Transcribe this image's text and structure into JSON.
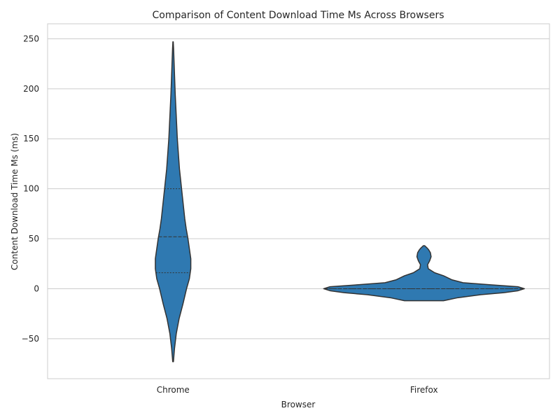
{
  "chart_data": {
    "type": "violin",
    "title": "Comparison of Content Download Time Ms Across Browsers",
    "xlabel": "Browser",
    "ylabel": "Content Download Time Ms (ms)",
    "categories": [
      "Chrome",
      "Firefox"
    ],
    "ylim": [
      -90,
      265
    ],
    "yticks": [
      -50,
      0,
      50,
      100,
      150,
      200,
      250
    ],
    "ytick_labels": [
      "−50",
      "0",
      "50",
      "100",
      "150",
      "200",
      "250"
    ],
    "grid": true,
    "fill_color": "#2f79b1",
    "violins": [
      {
        "category": "Chrome",
        "range": [
          -73,
          247
        ],
        "quartiles": {
          "q1": 16,
          "median": 52,
          "q3": 100
        },
        "density_profile": [
          [
            -73,
            0.01
          ],
          [
            -60,
            0.04
          ],
          [
            -45,
            0.09
          ],
          [
            -30,
            0.17
          ],
          [
            -15,
            0.28
          ],
          [
            0,
            0.38
          ],
          [
            10,
            0.46
          ],
          [
            20,
            0.5
          ],
          [
            30,
            0.5
          ],
          [
            40,
            0.46
          ],
          [
            50,
            0.42
          ],
          [
            60,
            0.37
          ],
          [
            70,
            0.33
          ],
          [
            80,
            0.3
          ],
          [
            90,
            0.27
          ],
          [
            100,
            0.24
          ],
          [
            110,
            0.21
          ],
          [
            120,
            0.18
          ],
          [
            135,
            0.15
          ],
          [
            150,
            0.12
          ],
          [
            165,
            0.1
          ],
          [
            180,
            0.08
          ],
          [
            195,
            0.06
          ],
          [
            210,
            0.045
          ],
          [
            225,
            0.03
          ],
          [
            240,
            0.015
          ],
          [
            247,
            0.005
          ]
        ]
      },
      {
        "category": "Firefox",
        "range": [
          -12,
          43
        ],
        "quartiles": {
          "q1": 0,
          "median": 0,
          "q3": 0
        },
        "density_profile": [
          [
            -12,
            0.55
          ],
          [
            -9,
            0.95
          ],
          [
            -6,
            1.6
          ],
          [
            -4,
            2.25
          ],
          [
            -2,
            2.65
          ],
          [
            0,
            2.83
          ],
          [
            2,
            2.65
          ],
          [
            4,
            1.85
          ],
          [
            6,
            1.1
          ],
          [
            9,
            0.78
          ],
          [
            13,
            0.55
          ],
          [
            16,
            0.3
          ],
          [
            20,
            0.12
          ],
          [
            24,
            0.1
          ],
          [
            28,
            0.16
          ],
          [
            32,
            0.2
          ],
          [
            36,
            0.18
          ],
          [
            39,
            0.13
          ],
          [
            41,
            0.08
          ],
          [
            43,
            0.02
          ]
        ]
      }
    ]
  }
}
